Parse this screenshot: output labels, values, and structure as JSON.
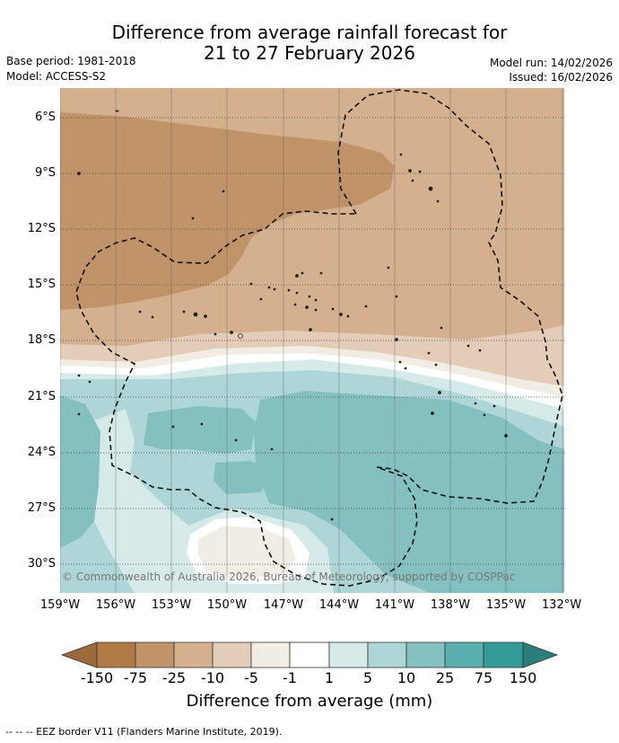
{
  "title": {
    "line1": "Difference from average rainfall forecast for",
    "line2": "21 to 27 February 2026"
  },
  "meta": {
    "base_period": "Base period: 1981-2018",
    "model": "Model: ACCESS-S2",
    "model_run": "Model run: 14/02/2026",
    "issued": "Issued: 16/02/2026"
  },
  "map": {
    "copyright": "© Commonwealth of Australia 2026, Bureau of Meteorology, supported by COSPPac",
    "lat_labels": [
      "6°S",
      "9°S",
      "12°S",
      "15°S",
      "18°S",
      "21°S",
      "24°S",
      "27°S",
      "30°S"
    ],
    "lon_labels": [
      "159°W",
      "156°W",
      "153°W",
      "150°W",
      "147°W",
      "144°W",
      "141°W",
      "138°W",
      "135°W",
      "132°W"
    ],
    "eez_border": "EEZ border"
  },
  "colorbar": {
    "tick_labels": [
      "-150",
      "-75",
      "-25",
      "-10",
      "-5",
      "-1",
      "1",
      "5",
      "10",
      "25",
      "75",
      "150"
    ],
    "colors": [
      "#b07a45",
      "#c09468",
      "#d4b08e",
      "#e3cdb8",
      "#f1ece4",
      "#ffffff",
      "#d6eaea",
      "#aed6d6",
      "#85c0c0",
      "#5aaeae",
      "#339a98"
    ],
    "ext_low_color": "#9c6a3a",
    "ext_high_color": "#2a7f7e",
    "title": "Difference from average (mm)"
  },
  "legend": {
    "eez_line": "--  --  -- EEZ border V11 (Flanders Marine Institute, 2019)."
  }
}
